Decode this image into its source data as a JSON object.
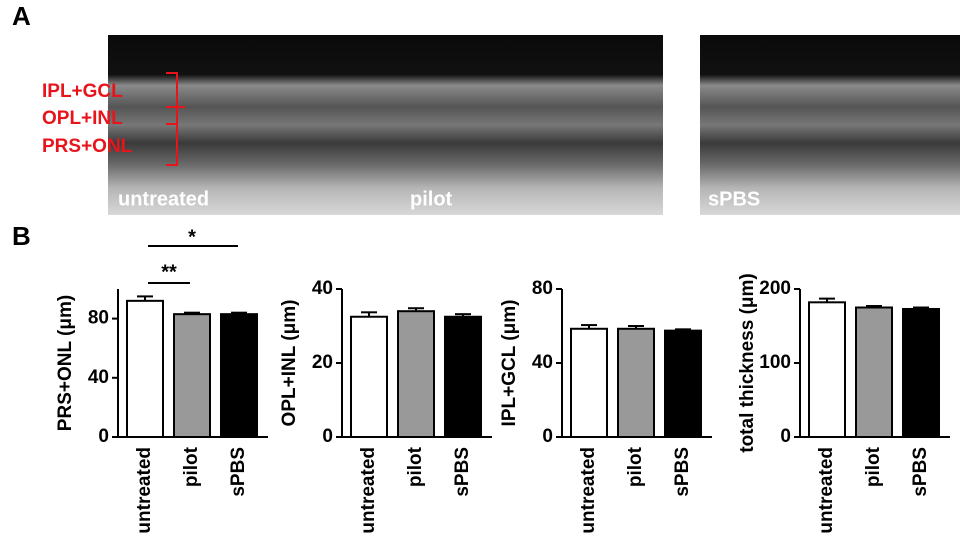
{
  "panel_labels": [
    "A",
    "B"
  ],
  "images": [
    "untreated",
    "pilot",
    "sPBS"
  ],
  "layer_labels": [
    "IPL+GCL",
    "OPL+INL",
    "PRS+ONL"
  ],
  "significance": [
    "**",
    "*"
  ],
  "chart_data": [
    {
      "type": "bar",
      "ylabel": "PRS+ONL (μm)",
      "categories": [
        "untreated",
        "pilot",
        "sPBS"
      ],
      "values": [
        92,
        83,
        83
      ],
      "errors": [
        3,
        1,
        1
      ],
      "colors": [
        "#ffffff",
        "#999999",
        "#000000"
      ],
      "ylim": [
        0,
        100
      ],
      "yticks": [
        0,
        40,
        80
      ]
    },
    {
      "type": "bar",
      "ylabel": "OPL+INL (μm)",
      "categories": [
        "untreated",
        "pilot",
        "sPBS"
      ],
      "values": [
        32.5,
        34,
        32.5
      ],
      "errors": [
        1.2,
        0.8,
        0.7
      ],
      "colors": [
        "#ffffff",
        "#999999",
        "#000000"
      ],
      "ylim": [
        0,
        40
      ],
      "yticks": [
        0,
        20,
        40
      ]
    },
    {
      "type": "bar",
      "ylabel": "IPL+GCL (μm)",
      "categories": [
        "untreated",
        "pilot",
        "sPBS"
      ],
      "values": [
        58.5,
        58.5,
        57.5
      ],
      "errors": [
        2,
        1.5,
        0.7
      ],
      "colors": [
        "#ffffff",
        "#999999",
        "#000000"
      ],
      "ylim": [
        0,
        80
      ],
      "yticks": [
        0,
        40,
        80
      ]
    },
    {
      "type": "bar",
      "ylabel": "total thickness (μm)",
      "categories": [
        "untreated",
        "pilot",
        "sPBS"
      ],
      "values": [
        182,
        175,
        173
      ],
      "errors": [
        5,
        2,
        2
      ],
      "colors": [
        "#ffffff",
        "#999999",
        "#000000"
      ],
      "ylim": [
        0,
        200
      ],
      "yticks": [
        0,
        100,
        200
      ]
    }
  ]
}
